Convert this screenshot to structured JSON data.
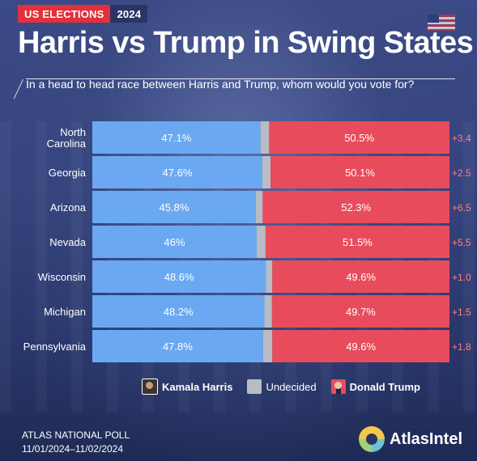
{
  "tag": {
    "left": "US ELECTIONS",
    "right": "2024"
  },
  "title": "Harris vs Trump in Swing States",
  "subtitle": "In a head to head race between Harris and Trump, whom would you vote for?",
  "colors": {
    "harris": "#6aa9f2",
    "undecided": "#b9bcc5",
    "trump": "#e84c5c",
    "margin": "#ff7f87"
  },
  "chart_data": {
    "type": "bar",
    "orientation": "horizontal-stacked-100",
    "categories": [
      "North Carolina",
      "Georgia",
      "Arizona",
      "Nevada",
      "Wisconsin",
      "Michigan",
      "Pennsylvania"
    ],
    "series": [
      {
        "name": "Kamala Harris",
        "values": [
          47.1,
          47.6,
          45.8,
          46,
          48.6,
          48.2,
          47.8
        ],
        "labels": [
          "47.1%",
          "47.6%",
          "45.8%",
          "46%",
          "48.6%",
          "48.2%",
          "47.8%"
        ]
      },
      {
        "name": "Undecided",
        "values": [
          2.4,
          2.3,
          1.9,
          2.5,
          1.8,
          2.1,
          2.6
        ]
      },
      {
        "name": "Donald Trump",
        "values": [
          50.5,
          50.1,
          52.3,
          51.5,
          49.6,
          49.7,
          49.6
        ],
        "labels": [
          "50.5%",
          "50.1%",
          "52.3%",
          "51.5%",
          "49.6%",
          "49.7%",
          "49.6%"
        ]
      }
    ],
    "margins": [
      "+3.4",
      "+2.5",
      "+6.5",
      "+5.5",
      "+1.0",
      "+1.5",
      "+1.8"
    ],
    "xlim": [
      0,
      100
    ]
  },
  "legend": {
    "harris": "Kamala Harris",
    "undecided": "Undecided",
    "trump": "Donald Trump"
  },
  "footer": {
    "poll_name": "ATLAS NATIONAL POLL",
    "dates": "11/01/2024–11/02/2024",
    "logo": "AtlasIntel"
  }
}
